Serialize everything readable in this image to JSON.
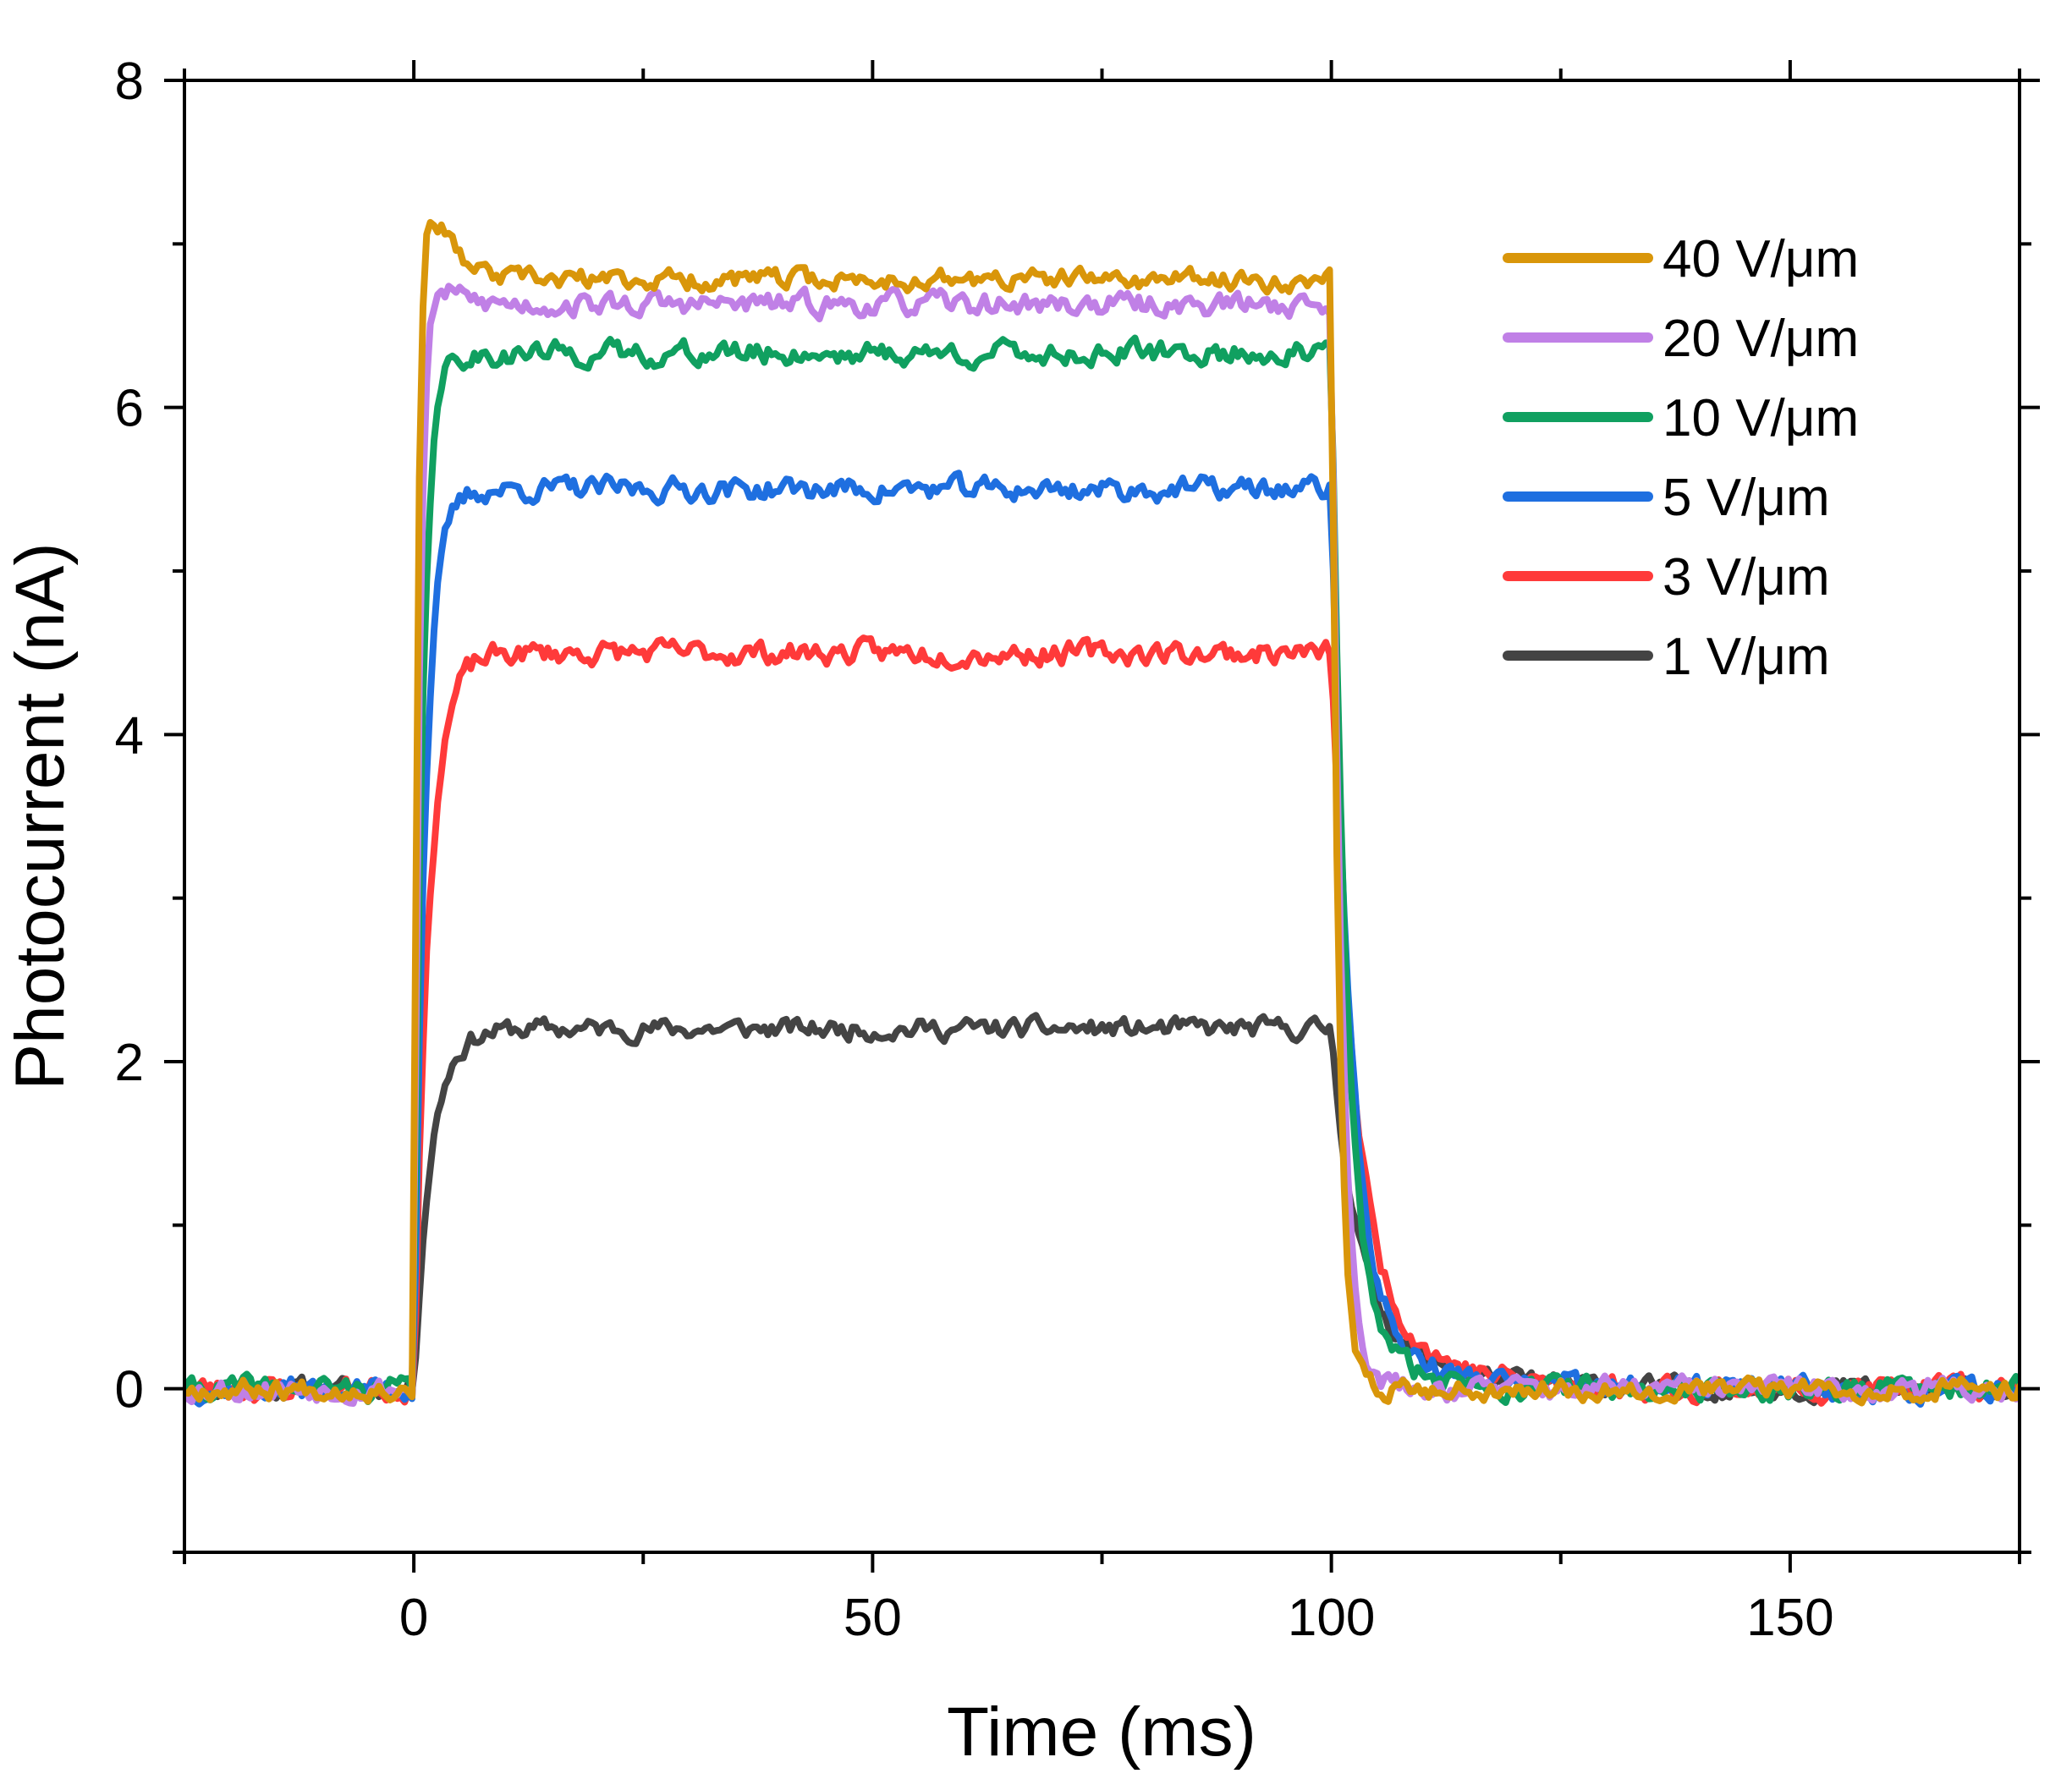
{
  "chart_data": {
    "type": "line",
    "xlabel": "Time (ms)",
    "ylabel": "Photocurrent (nA)",
    "xlim": [
      -25,
      175
    ],
    "ylim": [
      -1,
      8
    ],
    "xticks": [
      0,
      50,
      100,
      150
    ],
    "xtick_labels": [
      "0",
      "50",
      "100",
      "150"
    ],
    "yticks": [
      0,
      2,
      4,
      6,
      8
    ],
    "ytick_labels": [
      "0",
      "2",
      "4",
      "6",
      "8"
    ],
    "grid": false,
    "legend_position": "top-right",
    "pulse": {
      "on": 0,
      "off": 100
    },
    "series": [
      {
        "name": "1 V/μm",
        "color": "#444444",
        "plateau": 2.2,
        "rise_tau": 1.8,
        "overshoot": 0,
        "fall_tau": 2.8,
        "tail_amp": 0.45,
        "tail_tau": 9.0,
        "noise": 0.07,
        "seed": 11
      },
      {
        "name": "3 V/μm",
        "color": "#ff3a3a",
        "plateau": 4.5,
        "rise_tau": 1.6,
        "overshoot": 0,
        "fall_tau": 2.4,
        "tail_amp": 0.75,
        "tail_tau": 8.0,
        "noise": 0.08,
        "seed": 23
      },
      {
        "name": "5 V/μm",
        "color": "#1e6fe0",
        "plateau": 5.5,
        "rise_tau": 1.2,
        "overshoot": 0,
        "fall_tau": 2.0,
        "tail_amp": 0.55,
        "tail_tau": 7.0,
        "noise": 0.08,
        "seed": 37
      },
      {
        "name": "10 V/μm",
        "color": "#10a060",
        "plateau": 6.33,
        "rise_tau": 0.9,
        "overshoot": 0,
        "fall_tau": 1.6,
        "tail_amp": 0.45,
        "tail_tau": 6.0,
        "noise": 0.08,
        "seed": 41
      },
      {
        "name": "20 V/μm",
        "color": "#c080e6",
        "plateau": 6.63,
        "rise_tau": 0.6,
        "overshoot": 0.15,
        "fall_tau": 1.1,
        "tail_amp": 0.1,
        "tail_tau": 3.0,
        "noise": 0.08,
        "seed": 53
      },
      {
        "name": "40 V/μm",
        "color": "#d9960a",
        "plateau": 6.78,
        "rise_tau": 0.4,
        "overshoot": 0.45,
        "fall_tau": 0.8,
        "tail_amp": 0.0,
        "tail_tau": 2.0,
        "noise": 0.07,
        "seed": 67
      }
    ]
  }
}
